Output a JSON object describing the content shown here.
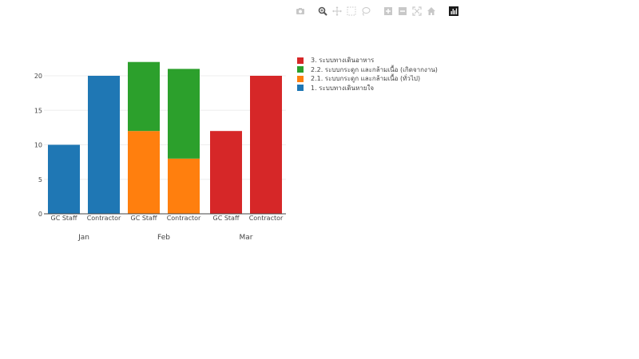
{
  "modebar": {
    "buttons": [
      {
        "name": "camera-icon",
        "label": "Download plot as png"
      },
      {
        "name": "zoom-icon",
        "label": "Zoom"
      },
      {
        "name": "pan-icon",
        "label": "Pan"
      },
      {
        "name": "box-select-icon",
        "label": "Box Select"
      },
      {
        "name": "lasso-select-icon",
        "label": "Lasso Select"
      },
      {
        "name": "zoom-in-icon",
        "label": "Zoom in"
      },
      {
        "name": "zoom-out-icon",
        "label": "Zoom out"
      },
      {
        "name": "autoscale-icon",
        "label": "Autoscale"
      },
      {
        "name": "home-icon",
        "label": "Reset axes"
      },
      {
        "name": "plotly-logo-icon",
        "label": "Produced with Plotly"
      }
    ]
  },
  "legend": {
    "items": [
      {
        "label": "3. ระบบทางเดินอาหาร",
        "color": "#d62728"
      },
      {
        "label": "2.2. ระบบกระดูก และกล้ามเนื้อ (เกิดจากงาน)",
        "color": "#2ca02c"
      },
      {
        "label": "2.1. ระบบกระดูก และกล้ามเนื้อ (ทั่วไป)",
        "color": "#ff7f0e"
      },
      {
        "label": "1. ระบบทางเดินหายใจ",
        "color": "#1f77b4"
      }
    ]
  },
  "chart_data": {
    "type": "bar",
    "barmode": "stack",
    "title": "",
    "xlabel": "",
    "ylabel": "",
    "ylim": [
      0,
      22
    ],
    "yticks": [
      0,
      5,
      10,
      15,
      20
    ],
    "grid": true,
    "legend_position": "right",
    "groups": [
      "Jan",
      "Feb",
      "Mar"
    ],
    "categories": [
      "GC Staff",
      "Contractor",
      "GC Staff",
      "Contractor",
      "GC Staff",
      "Contractor"
    ],
    "category_groups": [
      "Jan",
      "Jan",
      "Feb",
      "Feb",
      "Mar",
      "Mar"
    ],
    "series": [
      {
        "name": "1. ระบบทางเดินหายใจ",
        "color": "#1f77b4",
        "values": [
          10,
          20,
          0,
          0,
          0,
          0
        ]
      },
      {
        "name": "2.1. ระบบกระดูก และกล้ามเนื้อ (ทั่วไป)",
        "color": "#ff7f0e",
        "values": [
          0,
          0,
          12,
          8,
          0,
          0
        ]
      },
      {
        "name": "2.2. ระบบกระดูก และกล้ามเนื้อ (เกิดจากงาน)",
        "color": "#2ca02c",
        "values": [
          0,
          0,
          10,
          13,
          0,
          0
        ]
      },
      {
        "name": "3. ระบบทางเดินอาหาร",
        "color": "#d62728",
        "values": [
          0,
          0,
          0,
          0,
          12,
          20
        ]
      }
    ]
  }
}
